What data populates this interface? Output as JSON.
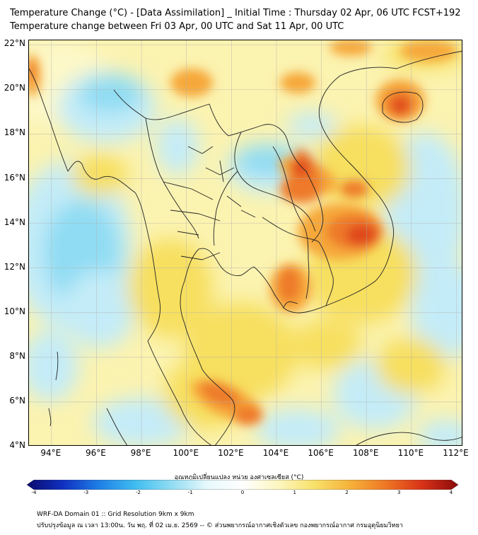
{
  "header": {
    "title_line1": "Temperature Change (°C) - [Data Assimilation] _ Initial Time : Thursday 02 Apr, 06 UTC FCST+192",
    "title_line2": "Temperature change between Fri 03 Apr, 00 UTC and Sat 11 Apr, 00 UTC"
  },
  "map": {
    "lat_labels": [
      "22°N",
      "20°N",
      "18°N",
      "16°N",
      "14°N",
      "12°N",
      "10°N",
      "8°N",
      "6°N",
      "4°N"
    ],
    "lon_labels": [
      "94°E",
      "96°E",
      "98°E",
      "100°E",
      "102°E",
      "104°E",
      "106°E",
      "108°E",
      "110°E",
      "112°E"
    ],
    "lat_values": [
      22,
      20,
      18,
      16,
      14,
      12,
      10,
      8,
      6,
      4
    ],
    "lon_values": [
      94,
      96,
      98,
      100,
      102,
      104,
      106,
      108,
      110,
      112
    ],
    "lon_range": [
      93,
      112.3
    ],
    "lat_range": [
      4,
      22.2
    ],
    "colors": {
      "base": "#fbf3b0",
      "light_yellow": "#fdf8c8",
      "yellow": "#f7df5e",
      "orange": "#f6a83a",
      "dark_orange": "#ee7a2a",
      "red_orange": "#e04a1c",
      "light_cyan": "#c4ecf8",
      "cyan": "#8fdcf3",
      "sky": "#5fcbee",
      "coast": "#222222",
      "grid": "#b0b0b0"
    }
  },
  "colorbar": {
    "label": "อุณหภูมิเปลี่ยนแปลง หน่วย องศาเซลเซียส (°C)",
    "ticks": [
      "-4",
      "-3",
      "-2",
      "-1",
      "0",
      "1",
      "2",
      "3",
      "4"
    ],
    "tick_values": [
      -4,
      -3,
      -2,
      -1,
      0,
      1,
      2,
      3,
      4
    ],
    "range": [
      -4,
      4
    ],
    "stops": [
      "#0a0a6e",
      "#1030c0",
      "#1e7ee6",
      "#3fbcf0",
      "#8fdcf3",
      "#e6f8fb",
      "#ffffff",
      "#fdf6bf",
      "#f8e16a",
      "#f6b13a",
      "#ee7624",
      "#d83218",
      "#8a0a0a"
    ]
  },
  "footer": {
    "line1": "WRF-DA Domain 01 :: Grid Resolution 9km x 9km",
    "line2": "ปรับปรุงข้อมูล ณ เวลา 13:00น. วัน พฤ. ที่ 02 เม.ย. 2569 -- © ส่วนพยากรณ์อากาศเชิงตัวเลข กองพยากรณ์อากาศ กรมอุตุนิยมวิทยา"
  }
}
